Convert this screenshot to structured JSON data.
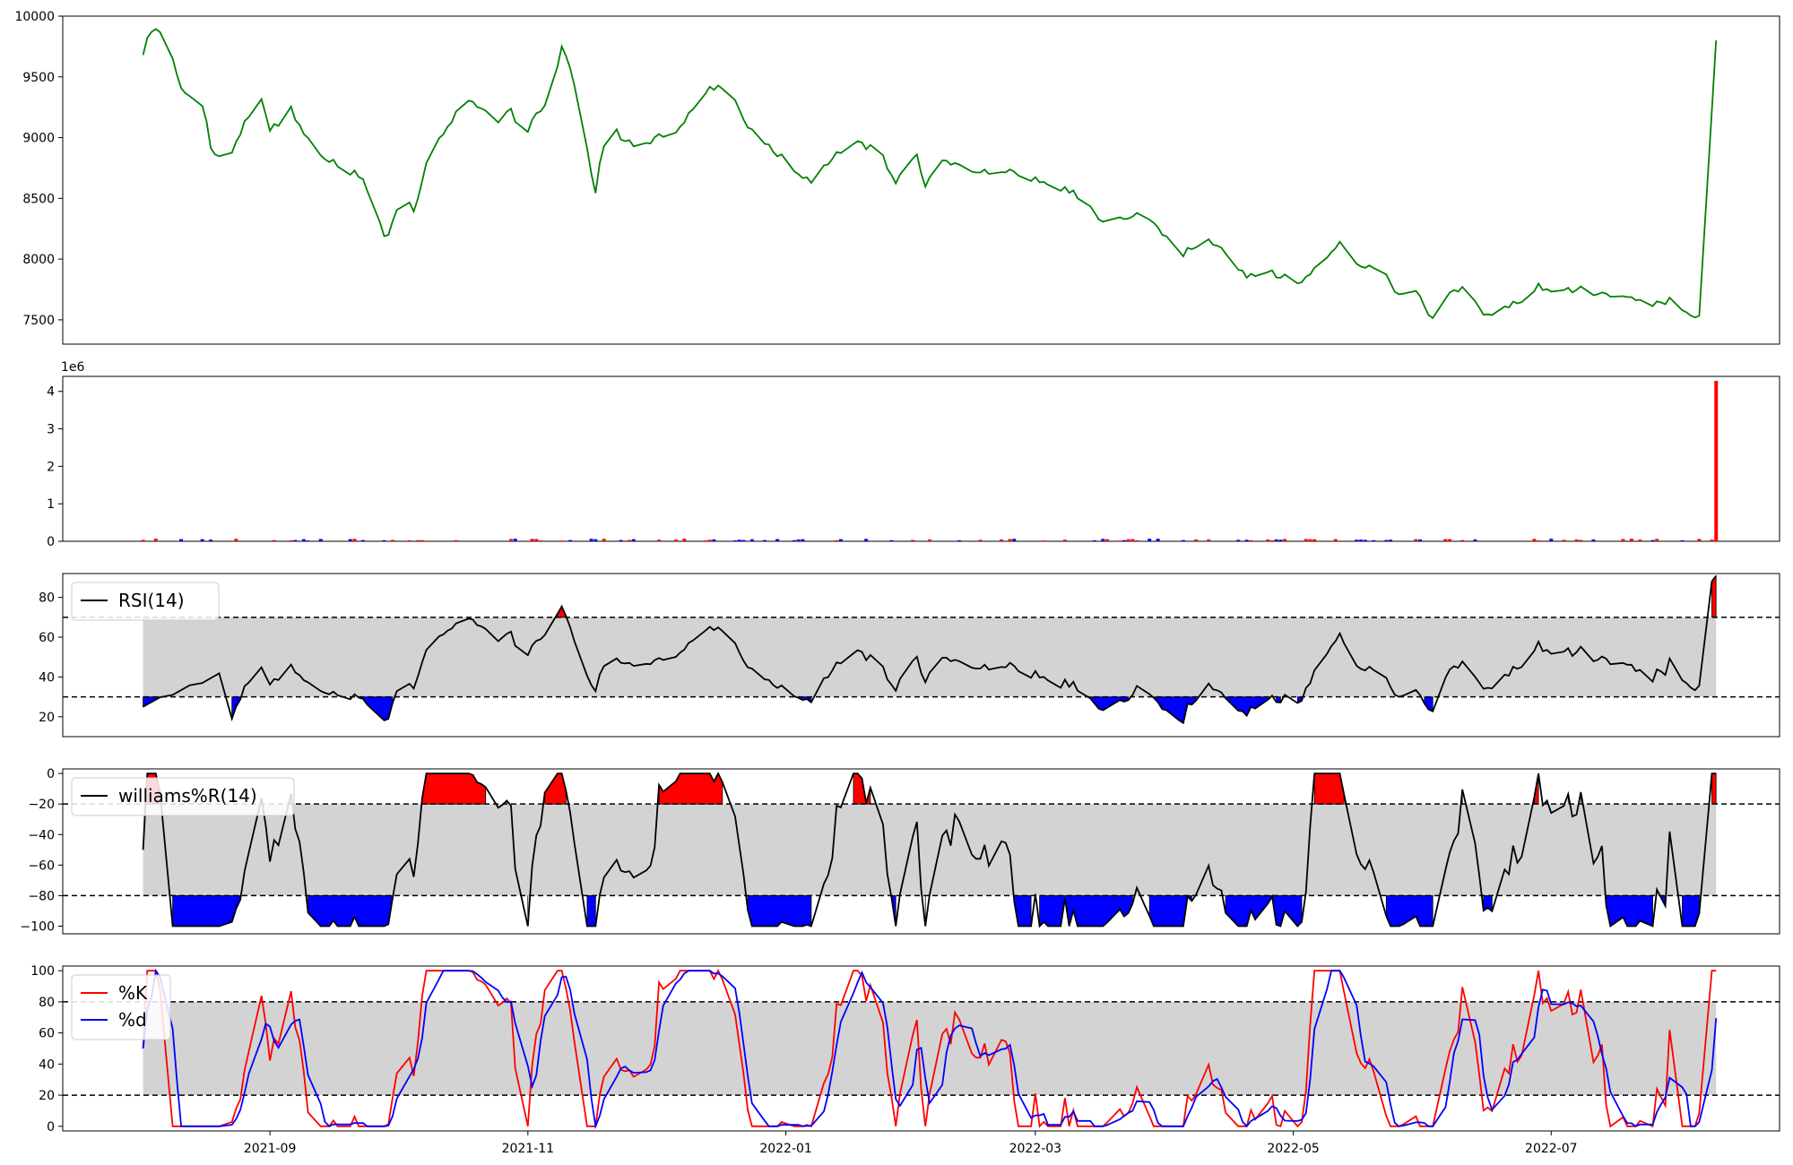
{
  "chart_data": [
    {
      "type": "line",
      "panel": "price",
      "series": [
        {
          "color": "#008000",
          "x": [],
          "values": []
        }
      ],
      "ylim": [
        7300,
        10000
      ],
      "yticks": [
        7500,
        8000,
        8500,
        9000,
        9500,
        10000
      ],
      "grid": false
    },
    {
      "type": "bar",
      "panel": "volume",
      "scale_label": "1e6",
      "ylim": [
        0,
        4.4
      ],
      "yticks": [
        0,
        1,
        2,
        3,
        4
      ],
      "up_color": "#ff0000",
      "down_color": "#0000ff",
      "series": [
        {
          "x": [],
          "values": []
        }
      ],
      "grid": false
    },
    {
      "type": "line",
      "panel": "rsi",
      "ylim": [
        10,
        92
      ],
      "yticks": [
        20,
        40,
        60,
        80
      ],
      "overbought": 70,
      "oversold": 30,
      "legend": "upper left",
      "series": [
        {
          "name": "RSI(14)",
          "color": "#000000",
          "x": [],
          "values": []
        }
      ],
      "grid": false
    },
    {
      "type": "line",
      "panel": "williams",
      "ylim": [
        -105,
        3
      ],
      "yticks": [
        -100,
        -80,
        -60,
        -40,
        -20,
        0
      ],
      "overbought": -20,
      "oversold": -80,
      "legend": "upper left",
      "series": [
        {
          "name": "williams%R(14)",
          "color": "#000000",
          "x": [],
          "values": []
        }
      ],
      "grid": false
    },
    {
      "type": "line",
      "panel": "stochastic",
      "ylim": [
        -3,
        103
      ],
      "yticks": [
        0,
        20,
        40,
        60,
        80,
        100
      ],
      "overbought": 80,
      "oversold": 20,
      "legend": "upper left",
      "series": [
        {
          "name": "%K",
          "color": "#ff0000",
          "x": [],
          "values": []
        },
        {
          "name": "%d",
          "color": "#0000ff",
          "x": [],
          "values": []
        }
      ],
      "xlim": [
        "2021-07-14",
        "2022-08-24"
      ],
      "xticks": [
        "2021-09",
        "2021-11",
        "2022-01",
        "2022-03",
        "2022-05",
        "2022-07"
      ],
      "grid": false
    }
  ]
}
